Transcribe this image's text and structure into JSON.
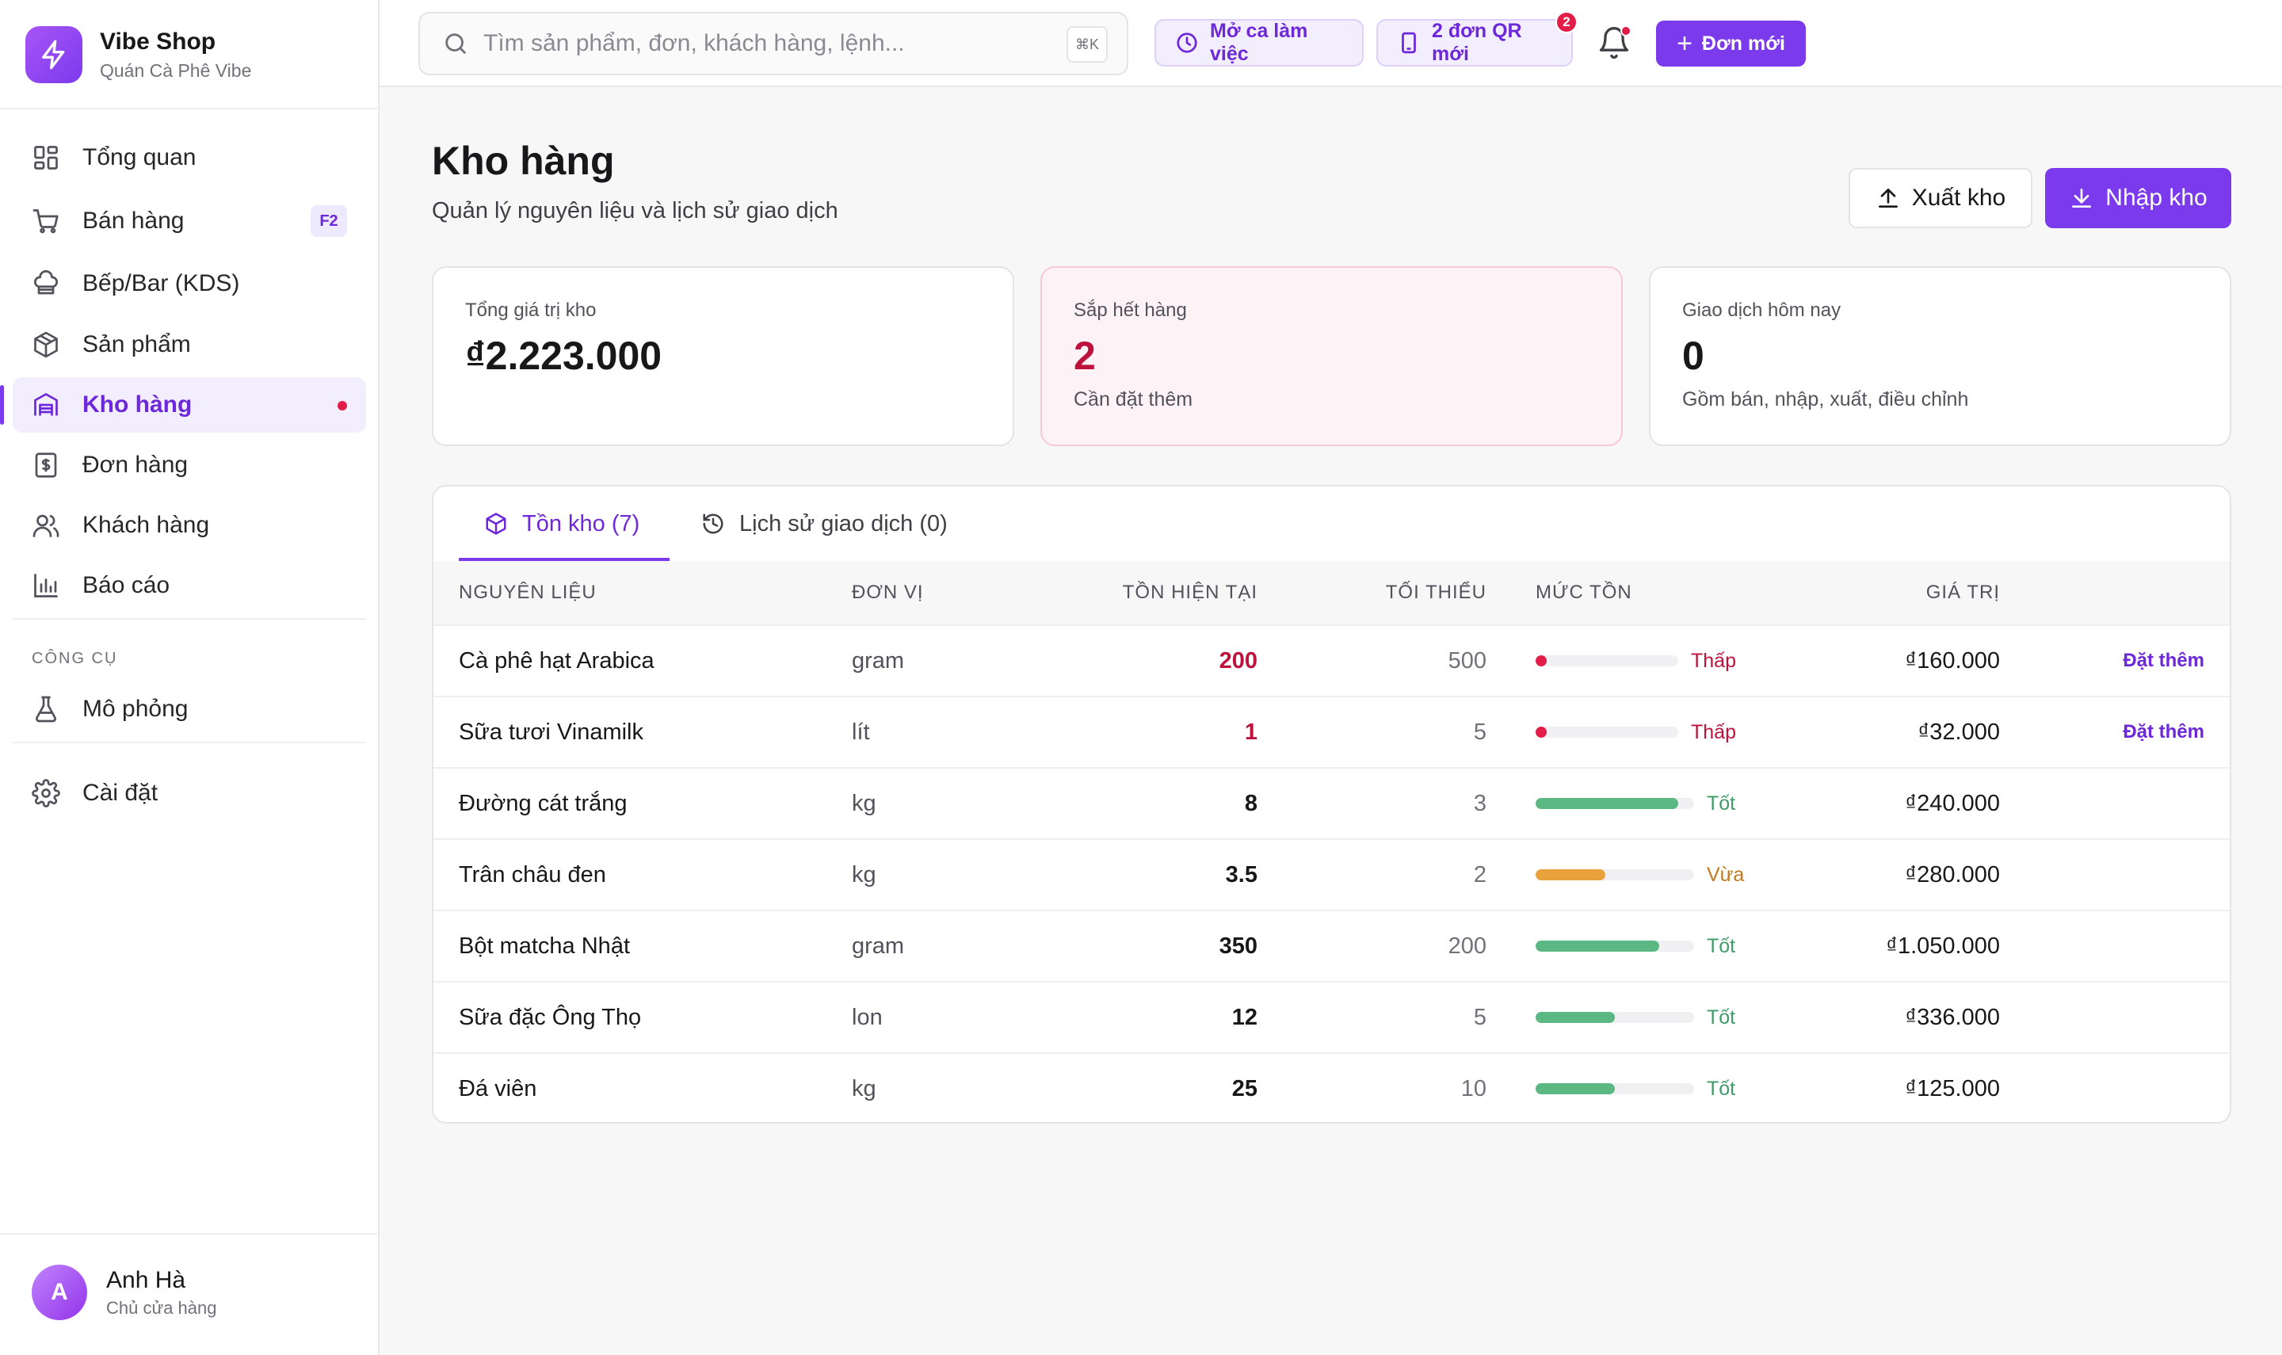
{
  "colors": {
    "accent": "#7c3aed",
    "danger": "#e11d48",
    "good": "#5cb883",
    "warning": "#e9a23b"
  },
  "brand": {
    "name": "Vibe Shop",
    "subtitle": "Quán Cà Phê Vibe",
    "logo_icon": "lightning-icon"
  },
  "sidebar": {
    "items": [
      {
        "label": "Tổng quan",
        "icon": "dashboard-icon"
      },
      {
        "label": "Bán hàng",
        "icon": "cart-icon",
        "shortcut": "F2"
      },
      {
        "label": "Bếp/Bar (KDS)",
        "icon": "chef-hat-icon"
      },
      {
        "label": "Sản phẩm",
        "icon": "package-icon"
      },
      {
        "label": "Kho hàng",
        "icon": "warehouse-icon",
        "active": true,
        "has_dot": true
      },
      {
        "label": "Đơn hàng",
        "icon": "receipt-icon"
      },
      {
        "label": "Khách hàng",
        "icon": "users-icon"
      },
      {
        "label": "Báo cáo",
        "icon": "bar-chart-icon"
      }
    ],
    "tools_label": "CÔNG CỤ",
    "tools": [
      {
        "label": "Mô phỏng",
        "icon": "flask-icon"
      }
    ],
    "settings": {
      "label": "Cài đặt",
      "icon": "gear-icon"
    },
    "user": {
      "initial": "A",
      "name": "Anh Hà",
      "role": "Chủ cửa hàng"
    }
  },
  "topbar": {
    "search_placeholder": "Tìm sản phẩm, đơn, khách hàng, lệnh...",
    "search_shortcut": "⌘K",
    "shift_button": "Mở ca làm việc",
    "qr_orders_button": "2 đơn QR mới",
    "qr_orders_count": "2",
    "new_order_button": "Đơn mới"
  },
  "page": {
    "title": "Kho hàng",
    "subtitle": "Quản lý nguyên liệu và lịch sử giao dịch",
    "export_button": "Xuất kho",
    "import_button": "Nhập kho"
  },
  "stats": [
    {
      "label": "Tổng giá trị kho",
      "value": "₫2.223.000",
      "note": ""
    },
    {
      "label": "Sắp hết hàng",
      "value": "2",
      "note": "Cần đặt thêm"
    },
    {
      "label": "Giao dịch hôm nay",
      "value": "0",
      "note": "Gồm bán, nhập, xuất, điều chỉnh"
    }
  ],
  "tabs": [
    {
      "label": "Tồn kho (7)",
      "icon": "package-icon",
      "active": true
    },
    {
      "label": "Lịch sử giao dịch (0)",
      "icon": "history-icon",
      "active": false
    }
  ],
  "table": {
    "columns": [
      "NGUYÊN LIỆU",
      "ĐƠN VỊ",
      "TỒN HIỆN TẠI",
      "TỐI THIỂU",
      "MỨC TỒN",
      "GIÁ TRỊ"
    ],
    "rows": [
      {
        "name": "Cà phê hạt Arabica",
        "unit": "gram",
        "qty": "200",
        "min": "500",
        "level": 0.08,
        "status": "Thấp",
        "status_type": "low",
        "value": "₫160.000",
        "action": "Đặt thêm"
      },
      {
        "name": "Sữa tươi Vinamilk",
        "unit": "lít",
        "qty": "1",
        "min": "5",
        "level": 0.04,
        "status": "Thấp",
        "status_type": "low",
        "value": "₫32.000",
        "action": "Đặt thêm"
      },
      {
        "name": "Đường cát trắng",
        "unit": "kg",
        "qty": "8",
        "min": "3",
        "level": 0.9,
        "status": "Tốt",
        "status_type": "good",
        "value": "₫240.000",
        "action": ""
      },
      {
        "name": "Trân châu đen",
        "unit": "kg",
        "qty": "3.5",
        "min": "2",
        "level": 0.44,
        "status": "Vừa",
        "status_type": "mid",
        "value": "₫280.000",
        "action": ""
      },
      {
        "name": "Bột matcha Nhật",
        "unit": "gram",
        "qty": "350",
        "min": "200",
        "level": 0.78,
        "status": "Tốt",
        "status_type": "good",
        "value": "₫1.050.000",
        "action": ""
      },
      {
        "name": "Sữa đặc Ông Thọ",
        "unit": "lon",
        "qty": "12",
        "min": "5",
        "level": 0.5,
        "status": "Tốt",
        "status_type": "good",
        "value": "₫336.000",
        "action": ""
      },
      {
        "name": "Đá viên",
        "unit": "kg",
        "qty": "25",
        "min": "10",
        "level": 0.5,
        "status": "Tốt",
        "status_type": "good",
        "value": "₫125.000",
        "action": ""
      }
    ]
  }
}
